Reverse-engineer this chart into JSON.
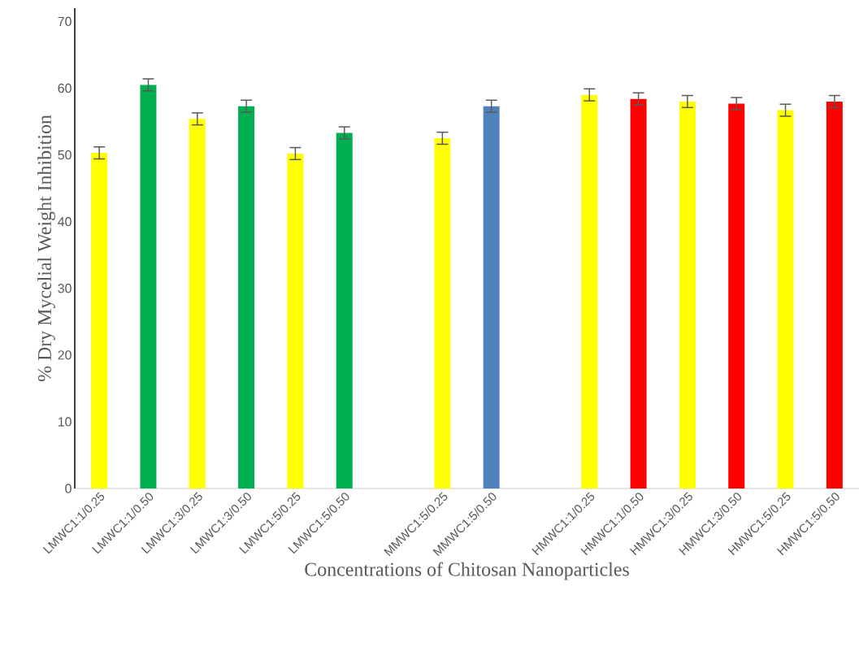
{
  "chart_data": {
    "type": "bar",
    "xlabel": "Concentrations of Chitosan Nanoparticles",
    "ylabel": "% Dry Mycelial Weight Inhibition",
    "categories": [
      "LMWC1:1/0.25",
      "LMWC1:1/0.50",
      "LMWC1:3/0.25",
      "LMWC1:3/0.50",
      "LMWC1:5/0.25",
      "LMWC1:5/0.50",
      null,
      "MMWC1:5/0.25",
      "MMWC1:5/0.50",
      null,
      "HMWC1:1/0.25",
      "HMWC1:1/0.50",
      "HMWC1:3/0.25",
      "HMWC1:3/0.50",
      "HMWC1:5/0.25",
      "HMWC1:5/0.50"
    ],
    "values": [
      50.3,
      60.5,
      55.4,
      57.3,
      50.2,
      53.3,
      null,
      52.5,
      57.3,
      null,
      59.0,
      58.4,
      58.0,
      57.7,
      56.7,
      58.0
    ],
    "errors": [
      0.9,
      0.9,
      0.9,
      0.9,
      0.9,
      0.9,
      null,
      0.9,
      0.9,
      null,
      0.9,
      0.9,
      0.9,
      0.9,
      0.9,
      0.9
    ],
    "colors": [
      "#ffff00",
      "#00b050",
      "#ffff00",
      "#00b050",
      "#ffff00",
      "#00b050",
      null,
      "#ffff00",
      "#4f81bd",
      null,
      "#ffff00",
      "#ff0000",
      "#ffff00",
      "#ff0000",
      "#ffff00",
      "#ff0000"
    ],
    "ylim": [
      0,
      72
    ],
    "yticks": [
      0,
      10,
      20,
      30,
      40,
      50,
      60,
      70
    ]
  }
}
